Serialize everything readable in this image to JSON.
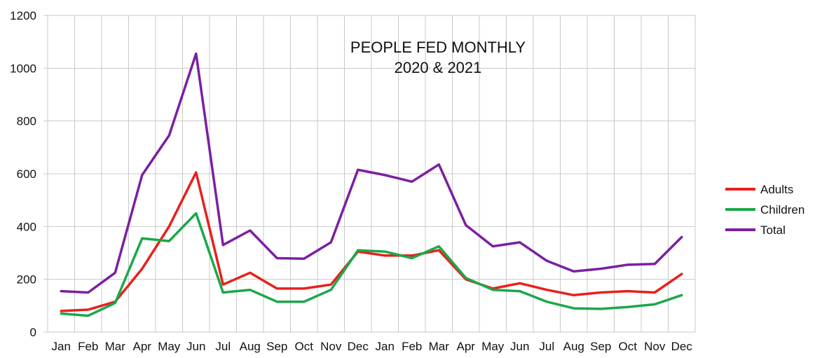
{
  "chart_data": {
    "type": "line",
    "title": "PEOPLE FED MONTHLY",
    "subtitle": "2020 & 2021",
    "xlabel": "",
    "ylabel": "",
    "categories": [
      "Jan",
      "Feb",
      "Mar",
      "Apr",
      "May",
      "Jun",
      "Jul",
      "Aug",
      "Sep",
      "Oct",
      "Nov",
      "Dec",
      "Jan",
      "Feb",
      "Mar",
      "Apr",
      "May",
      "Jun",
      "Jul",
      "Aug",
      "Sep",
      "Oct",
      "Nov",
      "Dec"
    ],
    "ylim": [
      0,
      1200
    ],
    "yticks": [
      0,
      200,
      400,
      600,
      800,
      1000,
      1200
    ],
    "grid": true,
    "legend_position": "right",
    "series": [
      {
        "name": "Adults",
        "color": "#e8201c",
        "values": [
          80,
          85,
          115,
          240,
          400,
          605,
          180,
          225,
          165,
          165,
          180,
          305,
          290,
          290,
          310,
          200,
          165,
          185,
          160,
          140,
          150,
          155,
          150,
          220
        ]
      },
      {
        "name": "Children",
        "color": "#1aa84a",
        "values": [
          70,
          62,
          110,
          355,
          345,
          450,
          150,
          160,
          115,
          115,
          160,
          310,
          305,
          280,
          325,
          205,
          160,
          155,
          115,
          90,
          88,
          95,
          105,
          140
        ]
      },
      {
        "name": "Total",
        "color": "#7b1fa2",
        "values": [
          155,
          150,
          225,
          595,
          745,
          1055,
          330,
          385,
          280,
          278,
          340,
          615,
          595,
          570,
          635,
          405,
          325,
          340,
          270,
          230,
          240,
          255,
          258,
          360
        ]
      }
    ]
  }
}
